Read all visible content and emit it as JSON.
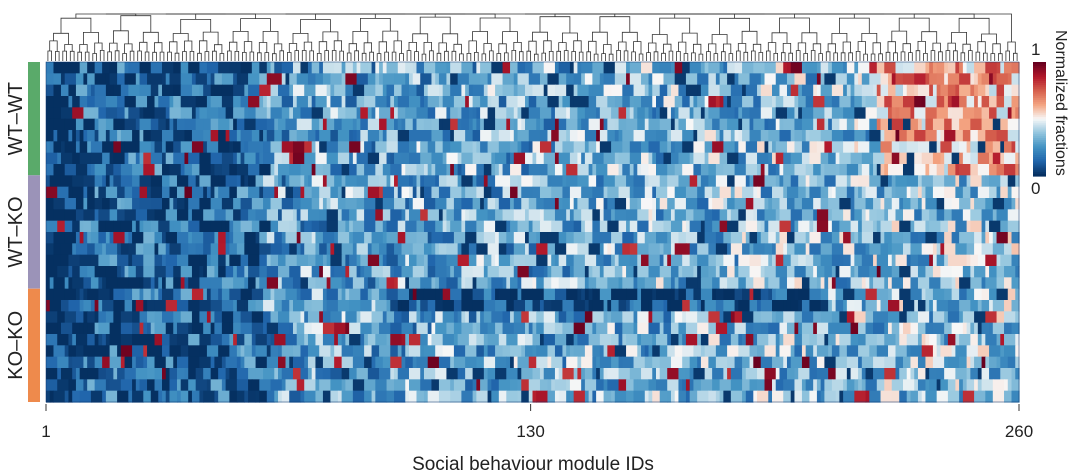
{
  "chart_data": {
    "type": "heatmap",
    "title": "",
    "xlabel": "Social behaviour module IDs",
    "ylabel": "",
    "x_ticks": [
      {
        "value": 1,
        "label": "1"
      },
      {
        "value": 130,
        "label": "130"
      },
      {
        "value": 260,
        "label": "260"
      }
    ],
    "xlim": [
      1,
      260
    ],
    "n_modules": 260,
    "groups": [
      {
        "name": "WT–WT",
        "color": "#5aaa6a",
        "rows": 10
      },
      {
        "name": "WT–KO",
        "color": "#9b93b8",
        "rows": 10
      },
      {
        "name": "KO–KO",
        "color": "#ee8a4c",
        "rows": 10
      }
    ],
    "colorbar": {
      "label": "Normalized fractions",
      "min": 0,
      "max": 1,
      "min_label": "0",
      "max_label": "1",
      "colors": [
        "#053061",
        "#2166ac",
        "#4393c3",
        "#92c5de",
        "#f7f7f7",
        "#f4a582",
        "#d6604d",
        "#b2182b",
        "#67001f"
      ]
    },
    "dendrogram": "top",
    "grid": false
  }
}
